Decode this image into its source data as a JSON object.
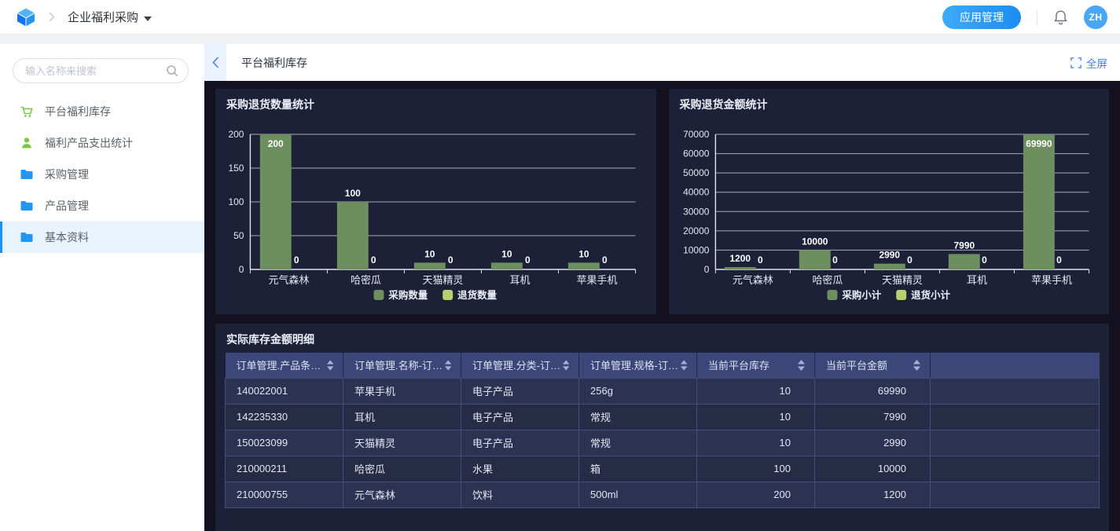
{
  "navbar": {
    "breadcrumb_app": "企业福利采购",
    "app_manage_button": "应用管理",
    "avatar_initials": "ZH"
  },
  "sidebar": {
    "search_placeholder": "输入名称来搜索",
    "items": [
      {
        "label": "平台福利库存",
        "icon": "cart-icon",
        "selected": false
      },
      {
        "label": "福利产品支出统计",
        "icon": "person-icon",
        "selected": false
      },
      {
        "label": "采购管理",
        "icon": "folder-icon",
        "selected": false
      },
      {
        "label": "产品管理",
        "icon": "folder-icon",
        "selected": false
      },
      {
        "label": "基本资料",
        "icon": "folder-icon",
        "selected": true
      }
    ]
  },
  "content_header": {
    "title": "平台福利库存",
    "fullscreen_label": "全屏"
  },
  "colors": {
    "accent_blue": "#1890ff",
    "link_blue": "#3d7fff",
    "panel_bg": "#1c2138",
    "page_dark_bg": "#131120",
    "table_header_bg": "#3b4778",
    "bar_green": "#6d8f60",
    "bar_light_green": "#b8d06e"
  },
  "chart_data": [
    {
      "type": "bar",
      "title": "采购退货数量统计",
      "categories": [
        "元气森林",
        "哈密瓜",
        "天猫精灵",
        "耳机",
        "苹果手机"
      ],
      "series": [
        {
          "name": "采购数量",
          "color": "#6d8f60",
          "values": [
            200,
            100,
            10,
            10,
            10
          ]
        },
        {
          "name": "退货数量",
          "color": "#b8d06e",
          "values": [
            0,
            0,
            0,
            0,
            0
          ]
        }
      ],
      "xlabel": "",
      "ylabel": "",
      "ylim": [
        0,
        200
      ],
      "ytick_step": 50,
      "grid": true,
      "legend_position": "bottom"
    },
    {
      "type": "bar",
      "title": "采购退货金额统计",
      "categories": [
        "元气森林",
        "哈密瓜",
        "天猫精灵",
        "耳机",
        "苹果手机"
      ],
      "series": [
        {
          "name": "采购小计",
          "color": "#6d8f60",
          "values": [
            1200,
            10000,
            2990,
            7990,
            69990
          ]
        },
        {
          "name": "退货小计",
          "color": "#b8d06e",
          "values": [
            0,
            0,
            0,
            0,
            0
          ]
        }
      ],
      "xlabel": "",
      "ylabel": "",
      "ylim": [
        0,
        70000
      ],
      "ytick_step": 10000,
      "grid": true,
      "legend_position": "bottom"
    }
  ],
  "table": {
    "title": "实际库存金额明细",
    "columns": [
      {
        "label": "订单管理.产品条码-...",
        "sortable": true,
        "align": "left"
      },
      {
        "label": "订单管理.名称-订单...",
        "sortable": true,
        "align": "left"
      },
      {
        "label": "订单管理.分类-订单...",
        "sortable": true,
        "align": "left"
      },
      {
        "label": "订单管理.规格-订单...",
        "sortable": true,
        "align": "left"
      },
      {
        "label": "当前平台库存",
        "sortable": true,
        "align": "right"
      },
      {
        "label": "当前平台金额",
        "sortable": true,
        "align": "right"
      },
      {
        "label": "",
        "sortable": false,
        "align": "left"
      }
    ],
    "rows": [
      [
        "140022001",
        "苹果手机",
        "电子产品",
        "256g",
        "10",
        "69990",
        ""
      ],
      [
        "142235330",
        "耳机",
        "电子产品",
        "常规",
        "10",
        "7990",
        ""
      ],
      [
        "150023099",
        "天猫精灵",
        "电子产品",
        "常规",
        "10",
        "2990",
        ""
      ],
      [
        "210000211",
        "哈密瓜",
        "水果",
        "箱",
        "100",
        "10000",
        ""
      ],
      [
        "210000755",
        "元气森林",
        "饮料",
        "500ml",
        "200",
        "1200",
        ""
      ]
    ]
  }
}
